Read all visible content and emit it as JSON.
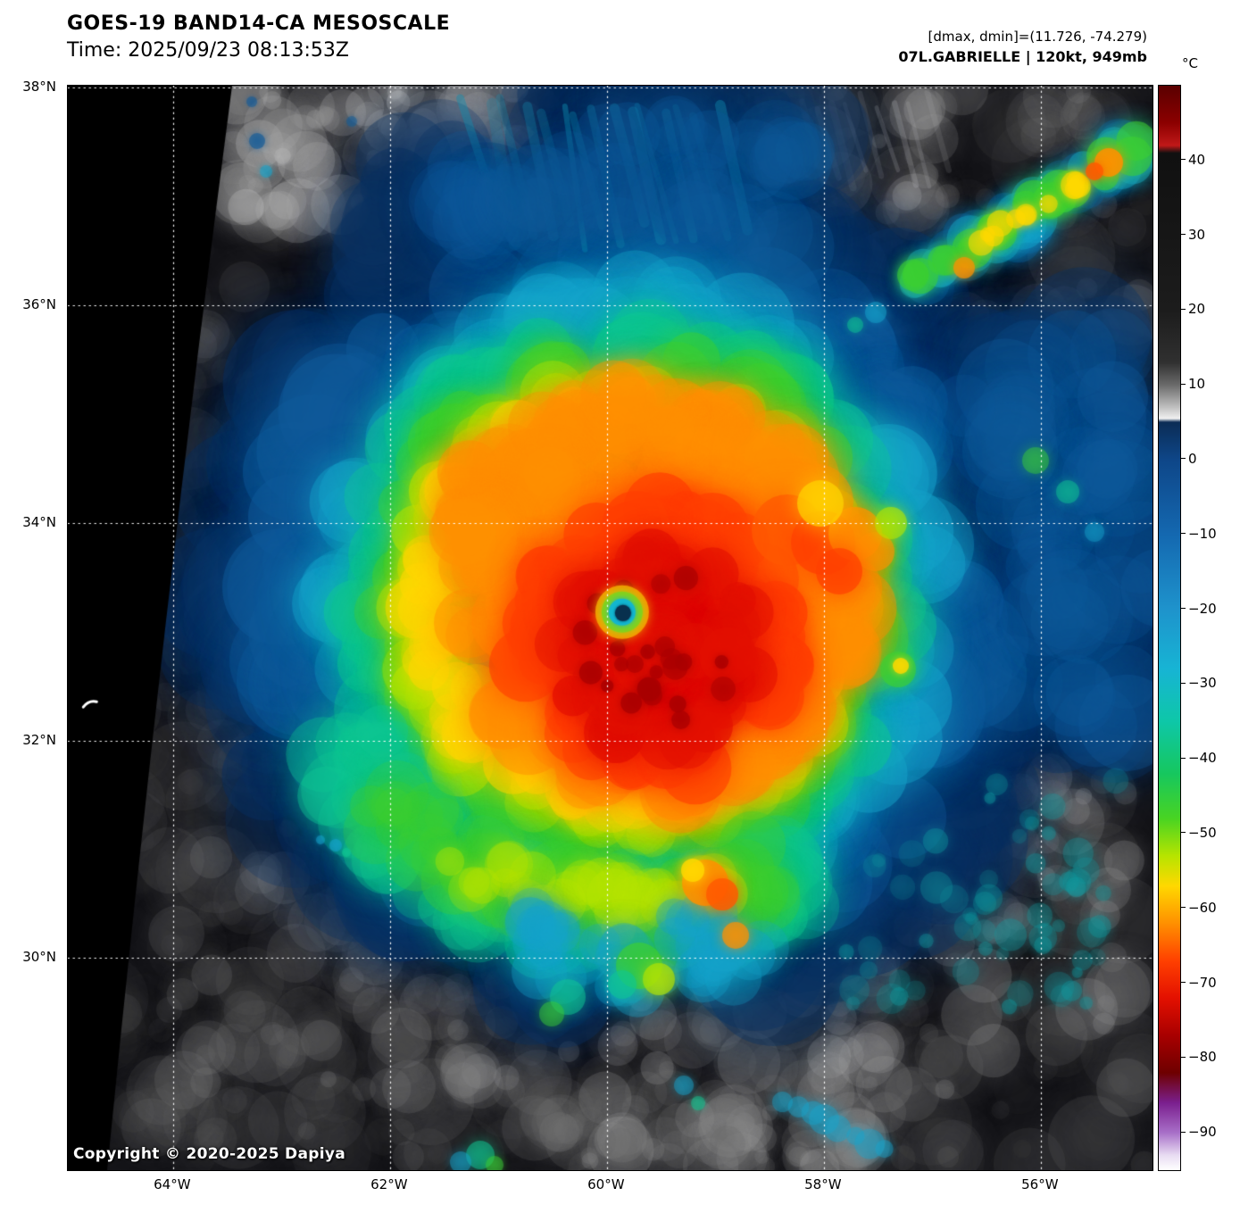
{
  "header": {
    "title": "GOES-19 BAND14-CA MESOSCALE",
    "time_line": "Time: 2025/09/23 08:13:53Z"
  },
  "annotations": {
    "range_line": "[dmax, dmin]=(11.726, -74.279)",
    "storm_line": "07L.GABRIELLE | 120kt, 949mb"
  },
  "colorbar": {
    "unit_label": "°C",
    "domain_top_c": 50,
    "domain_bottom_c": -95,
    "ticks": [
      40,
      30,
      20,
      10,
      0,
      -10,
      -20,
      -30,
      -40,
      -50,
      -60,
      -70,
      -80,
      -90
    ],
    "stops": [
      {
        "t": 50,
        "c": "#5a0000"
      },
      {
        "t": 45,
        "c": "#8c0000"
      },
      {
        "t": 42,
        "c": "#c01818"
      },
      {
        "t": 41,
        "c": "#101010"
      },
      {
        "t": 20,
        "c": "#1c1c1c"
      },
      {
        "t": 13,
        "c": "#303030"
      },
      {
        "t": 10,
        "c": "#6a6a6a"
      },
      {
        "t": 7,
        "c": "#c0c0c0"
      },
      {
        "t": 5.5,
        "c": "#f0f0f0"
      },
      {
        "t": 5,
        "c": "#0b2c55"
      },
      {
        "t": 0,
        "c": "#0e4688"
      },
      {
        "t": -10,
        "c": "#1468b0"
      },
      {
        "t": -20,
        "c": "#1e93cc"
      },
      {
        "t": -28,
        "c": "#17b4d4"
      },
      {
        "t": -35,
        "c": "#0ec7a8"
      },
      {
        "t": -42,
        "c": "#16c75e"
      },
      {
        "t": -48,
        "c": "#49d422"
      },
      {
        "t": -53,
        "c": "#b7e400"
      },
      {
        "t": -57,
        "c": "#ffd800"
      },
      {
        "t": -62,
        "c": "#ff9000"
      },
      {
        "t": -67,
        "c": "#ff4000"
      },
      {
        "t": -72,
        "c": "#e31000"
      },
      {
        "t": -77,
        "c": "#a80000"
      },
      {
        "t": -82,
        "c": "#6e0000"
      },
      {
        "t": -86,
        "c": "#7a1f8e"
      },
      {
        "t": -90,
        "c": "#a86fc8"
      },
      {
        "t": -93,
        "c": "#e8dcf2"
      },
      {
        "t": -95,
        "c": "#ffffff"
      }
    ]
  },
  "map": {
    "copyright": "Copyright © 2020-2025 Dapiya",
    "extent": {
      "lat_min": 28.05,
      "lat_max": 38.02,
      "lon_west": 64.97,
      "lon_east": 54.97
    },
    "lat_gridlines": [
      {
        "label": "38°N",
        "lat": 38
      },
      {
        "label": "36°N",
        "lat": 36
      },
      {
        "label": "34°N",
        "lat": 34
      },
      {
        "label": "32°N",
        "lat": 32
      },
      {
        "label": "30°N",
        "lat": 30
      }
    ],
    "lon_gridlines": [
      {
        "label": "64°W",
        "lon": 64
      },
      {
        "label": "62°W",
        "lon": 62
      },
      {
        "label": "60°W",
        "lon": 60
      },
      {
        "label": "58°W",
        "lon": 58
      },
      {
        "label": "56°W",
        "lon": 56
      }
    ],
    "scene": {
      "storm_center_lat_n": 33.18,
      "storm_center_lon_w": 59.86,
      "island_bermuda_lat_n": 32.34,
      "island_bermuda_lon_w": 64.77
    }
  }
}
